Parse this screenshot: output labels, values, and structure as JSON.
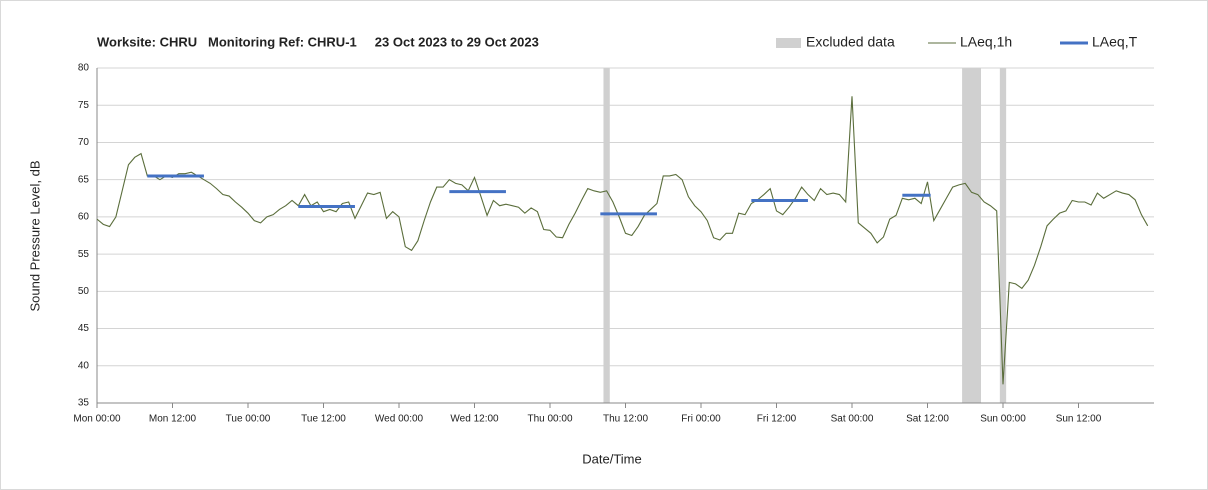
{
  "chart_data": {
    "type": "line",
    "title": "Worksite: CHRU   Monitoring Ref: CHRU-1     23 Oct 2023 to 29 Oct 2023",
    "x_label": "Date/Time",
    "y_label": "Sound Pressure Level, dB",
    "xlim": [
      0,
      168
    ],
    "xticks": [
      {
        "value": 0,
        "label": "Mon 00:00"
      },
      {
        "value": 12,
        "label": "Mon 12:00"
      },
      {
        "value": 24,
        "label": "Tue 00:00"
      },
      {
        "value": 36,
        "label": "Tue 12:00"
      },
      {
        "value": 48,
        "label": "Wed 00:00"
      },
      {
        "value": 60,
        "label": "Wed 12:00"
      },
      {
        "value": 72,
        "label": "Thu 00:00"
      },
      {
        "value": 84,
        "label": "Thu 12:00"
      },
      {
        "value": 96,
        "label": "Fri 00:00"
      },
      {
        "value": 108,
        "label": "Fri 12:00"
      },
      {
        "value": 120,
        "label": "Sat 00:00"
      },
      {
        "value": 132,
        "label": "Sat 12:00"
      },
      {
        "value": 144,
        "label": "Sun 00:00"
      },
      {
        "value": 156,
        "label": "Sun 12:00"
      }
    ],
    "ylim": [
      35,
      80
    ],
    "yticks": [
      35,
      40,
      45,
      50,
      55,
      60,
      65,
      70,
      75,
      80
    ],
    "grid": true,
    "excluded": {
      "name": "Excluded data",
      "color": "#d0d0d0",
      "ranges": [
        [
          80.5,
          81.5
        ],
        [
          137.5,
          140.5
        ],
        [
          143.5,
          144.5
        ]
      ]
    },
    "x": [
      0,
      1,
      2,
      3,
      4,
      5,
      6,
      7,
      8,
      9,
      10,
      11,
      12,
      13,
      14,
      15,
      16,
      17,
      18,
      19,
      20,
      21,
      22,
      23,
      24,
      25,
      26,
      27,
      28,
      29,
      30,
      31,
      32,
      33,
      34,
      35,
      36,
      37,
      38,
      39,
      40,
      41,
      42,
      43,
      44,
      45,
      46,
      47,
      48,
      49,
      50,
      51,
      52,
      53,
      54,
      55,
      56,
      57,
      58,
      59,
      60,
      61,
      62,
      63,
      64,
      65,
      66,
      67,
      68,
      69,
      70,
      71,
      72,
      73,
      74,
      75,
      76,
      77,
      78,
      79,
      80,
      81,
      82,
      83,
      84,
      85,
      86,
      87,
      88,
      89,
      90,
      91,
      92,
      93,
      94,
      95,
      96,
      97,
      98,
      99,
      100,
      101,
      102,
      103,
      104,
      105,
      106,
      107,
      108,
      109,
      110,
      111,
      112,
      113,
      114,
      115,
      116,
      117,
      118,
      119,
      120,
      121,
      122,
      123,
      124,
      125,
      126,
      127,
      128,
      129,
      130,
      131,
      132,
      133,
      134,
      135,
      136,
      137,
      138,
      139,
      140,
      141,
      142,
      143,
      144,
      145,
      146,
      147,
      148,
      149,
      150,
      151,
      152,
      153,
      154,
      155,
      156,
      157,
      158,
      159,
      160,
      161,
      162,
      163,
      164,
      165,
      166,
      167
    ],
    "series": [
      {
        "name": "LAeq,1h",
        "color": "#5b6e3c",
        "values": [
          59.7,
          59,
          58.7,
          60,
          63.5,
          67,
          68,
          68.5,
          65.5,
          65.5,
          65,
          65.5,
          65.3,
          65.8,
          65.8,
          66,
          65.5,
          65,
          64.5,
          63.8,
          63,
          62.8,
          62,
          61.3,
          60.5,
          59.5,
          59.2,
          60,
          60.3,
          61,
          61.5,
          62.2,
          61.5,
          63,
          61.5,
          62,
          60.7,
          61,
          60.7,
          61.8,
          62,
          59.8,
          61.5,
          63.2,
          63,
          63.3,
          59.8,
          60.7,
          60,
          56,
          55.5,
          56.8,
          59.5,
          62,
          64,
          64,
          65,
          64.5,
          64.3,
          63.5,
          65.3,
          62.8,
          60.2,
          62.2,
          61.5,
          61.7,
          61.5,
          61.3,
          60.5,
          61.2,
          60.7,
          58.3,
          58.2,
          57.3,
          57.2,
          59,
          60.5,
          62.2,
          63.8,
          63.5,
          63.3,
          63.5,
          62,
          60,
          57.8,
          57.5,
          58.7,
          60.2,
          61,
          61.8,
          65.5,
          65.5,
          65.7,
          65,
          62.7,
          61.5,
          60.7,
          59.5,
          57.2,
          56.9,
          57.8,
          57.8,
          60.5,
          60.3,
          61.8,
          62.3,
          63,
          63.8,
          60.8,
          60.3,
          61.3,
          62.5,
          64,
          63,
          62.2,
          63.8,
          63,
          63.2,
          63,
          62,
          76.2,
          59.2,
          58.5,
          57.8,
          56.5,
          57.3,
          59.7,
          60.2,
          62.5,
          62.3,
          62.5,
          61.8,
          64.7,
          59.5,
          61,
          62.5,
          64,
          64.3,
          64.5,
          63.3,
          63,
          62,
          61.5,
          60.8,
          37.5,
          51.2,
          51,
          50.4,
          51.5,
          53.5,
          56,
          58.8,
          59.7,
          60.5,
          60.8,
          62.2,
          62,
          62,
          61.6,
          63.2,
          62.5,
          63,
          63.5,
          63.2,
          63,
          62.3,
          60.3,
          58.8
        ]
      },
      {
        "name": "LAeq,T",
        "color": "#4472c4",
        "segments": [
          {
            "start": 8,
            "end": 17,
            "value": 65.5
          },
          {
            "start": 32,
            "end": 41,
            "value": 61.4
          },
          {
            "start": 56,
            "end": 65,
            "value": 63.4
          },
          {
            "start": 80,
            "end": 89,
            "value": 60.4
          },
          {
            "start": 104,
            "end": 113,
            "value": 62.2
          },
          {
            "start": 128,
            "end": 132.5,
            "value": 62.9
          }
        ]
      }
    ]
  }
}
